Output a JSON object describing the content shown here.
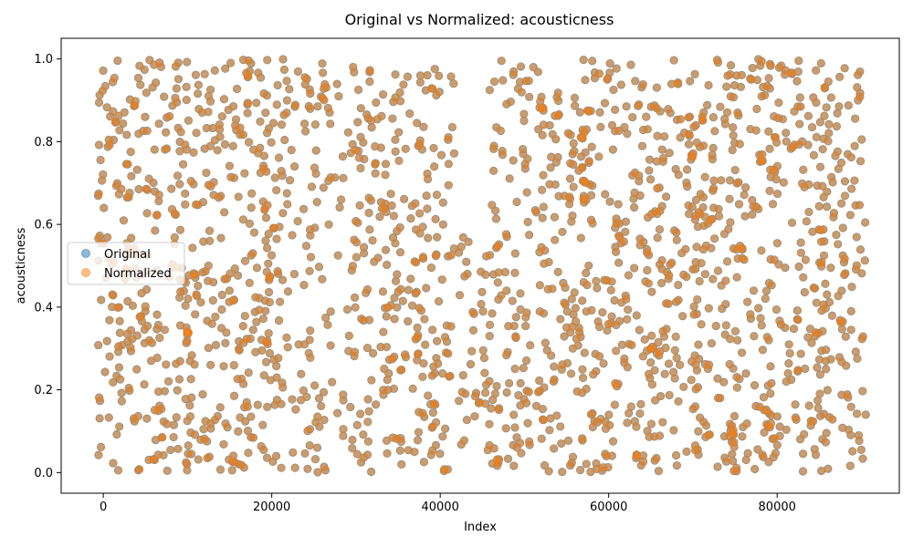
{
  "chart_data": {
    "type": "scatter",
    "title": "Original vs Normalized: acousticness",
    "xlabel": "Index",
    "ylabel": "acousticness",
    "xlim": [
      -5000,
      94500
    ],
    "ylim": [
      -0.05,
      1.05
    ],
    "x_ticks": [
      0,
      20000,
      40000,
      60000,
      80000
    ],
    "y_ticks": [
      0.0,
      0.2,
      0.4,
      0.6,
      0.8,
      1.0
    ],
    "x_tick_labels": [
      "0",
      "20000",
      "40000",
      "60000",
      "80000"
    ],
    "y_tick_labels": [
      "0.0",
      "0.2",
      "0.4",
      "0.6",
      "0.8",
      "1.0"
    ],
    "grid": false,
    "legend_position": "center-left",
    "n_points": 90000,
    "series": [
      {
        "name": "Original",
        "color": "#1f77b4",
        "alpha": 0.5
      },
      {
        "name": "Normalized",
        "color": "#ff7f0e",
        "alpha": 0.5
      }
    ],
    "dense_bands": [
      [
        0,
        2700
      ],
      [
        3400,
        6000
      ],
      [
        6500,
        9800
      ],
      [
        10300,
        12200
      ],
      [
        13300,
        17000
      ],
      [
        17400,
        19200
      ],
      [
        19800,
        21300
      ],
      [
        24500,
        25800
      ],
      [
        30000,
        37900
      ],
      [
        39400,
        41100
      ],
      [
        46200,
        50200
      ],
      [
        52400,
        56700
      ],
      [
        57500,
        60700
      ],
      [
        62500,
        64700
      ],
      [
        66000,
        69900
      ],
      [
        70800,
        74800
      ],
      [
        74900,
        79200
      ],
      [
        79500,
        85400
      ],
      [
        86300,
        90000
      ]
    ],
    "band_note": "Dense vertical bands of points spanning 0.0 to 1.0; sparser scatter between bands, with a gap near 0.6-1.0 around index 41000-46000."
  }
}
